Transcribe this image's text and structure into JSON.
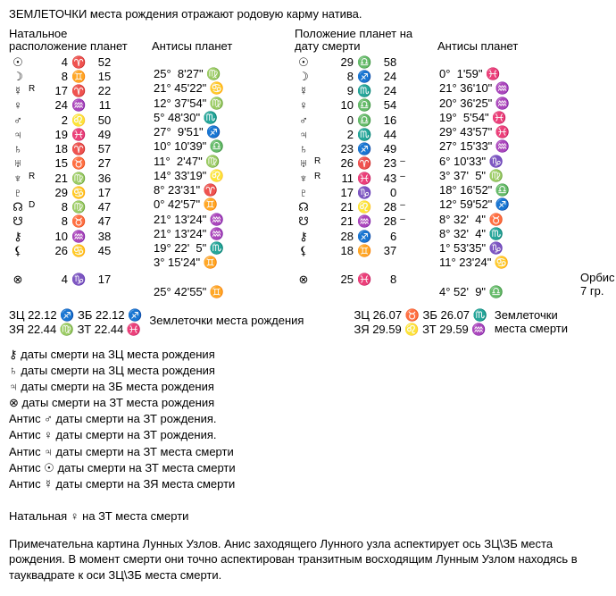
{
  "title_line": "ЗЕМЛЕТОЧКИ  места рождения отражают родовую карму натива.",
  "headers": {
    "natal_pos": "Натальное\nрасположение планет",
    "natal_ant": "Антисы планет",
    "death_pos": "Положение планет на\nдату смерти",
    "death_ant": "Антисы планет"
  },
  "natal_rows": [
    {
      "sym": "☉",
      "sub": "",
      "d": "4",
      "s": "♈",
      "m": "52",
      "ant": "25°  8'27\" ♍"
    },
    {
      "sym": "☽",
      "sub": "",
      "d": "8",
      "s": "♊",
      "m": "15",
      "ant": "21° 45'22\" ♋"
    },
    {
      "sym": "☿",
      "sub": "R",
      "d": "17",
      "s": "♈",
      "m": "22",
      "ant": "12° 37'54\" ♍"
    },
    {
      "sym": "♀",
      "sub": "",
      "d": "24",
      "s": "♒",
      "m": "11",
      "ant": "5° 48'30\" ♏"
    },
    {
      "sym": "♂",
      "sub": "",
      "d": "2",
      "s": "♌",
      "m": "50",
      "ant": "27°  9'51\" ♐"
    },
    {
      "sym": "♃",
      "sub": "",
      "d": "19",
      "s": "♓",
      "m": "49",
      "ant": "10° 10'39\" ♎"
    },
    {
      "sym": "♄",
      "sub": "",
      "d": "18",
      "s": "♈",
      "m": "57",
      "ant": "11°  2'47\" ♍"
    },
    {
      "sym": "♅",
      "sub": "",
      "d": "15",
      "s": "♉",
      "m": "27",
      "ant": "14° 33'19\" ♌"
    },
    {
      "sym": "♆",
      "sub": "R",
      "d": "21",
      "s": "♍",
      "m": "36",
      "ant": "8° 23'31\" ♈"
    },
    {
      "sym": "♇",
      "sub": "",
      "d": "29",
      "s": "♋",
      "m": "17",
      "ant": "0° 42'57\" ♊"
    },
    {
      "sym": "☊",
      "sub": "D",
      "d": "8",
      "s": "♍",
      "m": "47",
      "ant": "21° 13'24\" ♒"
    },
    {
      "sym": "☋",
      "sub": "",
      "d": "8",
      "s": "♉",
      "m": "47",
      "ant": "21° 13'24\" ♒"
    },
    {
      "sym": "⚷",
      "sub": "",
      "d": "10",
      "s": "♒",
      "m": "38",
      "ant": "19° 22'  5\" ♏"
    },
    {
      "sym": "⚸",
      "sub": "",
      "d": "26",
      "s": "♋",
      "m": "45",
      "ant": "3° 15'24\" ♊"
    },
    {
      "row_gap": true
    },
    {
      "sym": "⊗",
      "sub": "",
      "d": "4",
      "s": "♑",
      "m": "17",
      "ant": "25° 42'55\" ♊"
    }
  ],
  "death_rows": [
    {
      "sym": "☉",
      "sub": "",
      "d": "29",
      "s": "♎",
      "m": "58",
      "ant": "0°  1'59\" ♓"
    },
    {
      "sym": "☽",
      "sub": "",
      "d": "8",
      "s": "♐",
      "m": "24",
      "ant": "21° 36'10\" ♒"
    },
    {
      "sym": "☿",
      "sub": "",
      "d": "9",
      "s": "♏",
      "m": "24",
      "ant": "20° 36'25\" ♒"
    },
    {
      "sym": "♀",
      "sub": "",
      "d": "10",
      "s": "♎",
      "m": "54",
      "ant": "19°  5'54\" ♓"
    },
    {
      "sym": "♂",
      "sub": "",
      "d": "0",
      "s": "♎",
      "m": "16",
      "ant": "29° 43'57\" ♓"
    },
    {
      "sym": "♃",
      "sub": "",
      "d": "2",
      "s": "♏",
      "m": "44",
      "ant": "27° 15'33\" ♒"
    },
    {
      "sym": "♄",
      "sub": "",
      "d": "23",
      "s": "♐",
      "m": "49",
      "ant": "6° 10'33\" ♑"
    },
    {
      "sym": "♅",
      "sub": "R",
      "d": "26",
      "s": "♈",
      "m": "23",
      "post": "–",
      "ant": "3° 37'  5\" ♍"
    },
    {
      "sym": "♆",
      "sub": "R",
      "d": "11",
      "s": "♓",
      "m": "43",
      "post": "–",
      "ant": "18° 16'52\" ♎"
    },
    {
      "sym": "♇",
      "sub": "",
      "d": "17",
      "s": "♑",
      "m": "0",
      "ant": "12° 59'52\" ♐"
    },
    {
      "sym": "☊",
      "sub": "",
      "d": "21",
      "s": "♌",
      "m": "28",
      "post": "–",
      "ant": "8° 32'  4\" ♉"
    },
    {
      "sym": "☋",
      "sub": "",
      "d": "21",
      "s": "♒",
      "m": "28",
      "post": "–",
      "ant": "8° 32'  4\" ♏"
    },
    {
      "sym": "⚷",
      "sub": "",
      "d": "28",
      "s": "♐",
      "m": "6",
      "ant": "1° 53'35\" ♑"
    },
    {
      "sym": "⚸",
      "sub": "",
      "d": "18",
      "s": "♊",
      "m": "37",
      "ant": "11° 23'24\" ♋"
    },
    {
      "row_gap": true
    },
    {
      "sym": "⊗",
      "sub": "",
      "d": "25",
      "s": "♓",
      "m": "8",
      "ant": "4° 52'  9\" ♎"
    }
  ],
  "orbis": "Орбис 7 гр.",
  "zem_birth_block": "ЗЦ 22.12 ♐ ЗБ 22.12 ♐\nЗЯ 22.44 ♍ ЗТ 22.44 ♓",
  "zem_birth_label": "Землеточки места рождения",
  "zem_death_block": "ЗЦ 26.07 ♉ ЗБ 26.07 ♏\nЗЯ 29.59 ♌ ЗТ 29.59 ♒",
  "zem_death_label": "Землеточки\nместа смерти",
  "list_items": [
    "⚷ даты смерти на ЗЦ места рождения",
    "♄ даты смерти на ЗЦ места рождения",
    "♃ даты смерти на ЗБ места рождения",
    "⊗ даты смерти на  ЗТ места рождения",
    "Антис ♂ даты смерти  на ЗТ рождения.",
    "Антис ♀ даты смерти  на ЗТ рождения.",
    "Антис ♃ даты смерти  на ЗТ места смерти",
    "Антис ☉ даты смерти  на ЗТ места смерти",
    "Антис ☿ даты смерти  на ЗЯ места смерти",
    "",
    "Натальная ♀  на  ЗТ  места смерти"
  ],
  "paragraph": "Примечательна картина Лунных Узлов. Анис заходящего Лунного узла аспектирует ось ЗЦ\\ЗБ места рождения. В момент смерти они точно аспектирован транзитным восходящим Лунным Узлом находясь в тауквадрате к оси ЗЦ\\ЗБ места смерти."
}
